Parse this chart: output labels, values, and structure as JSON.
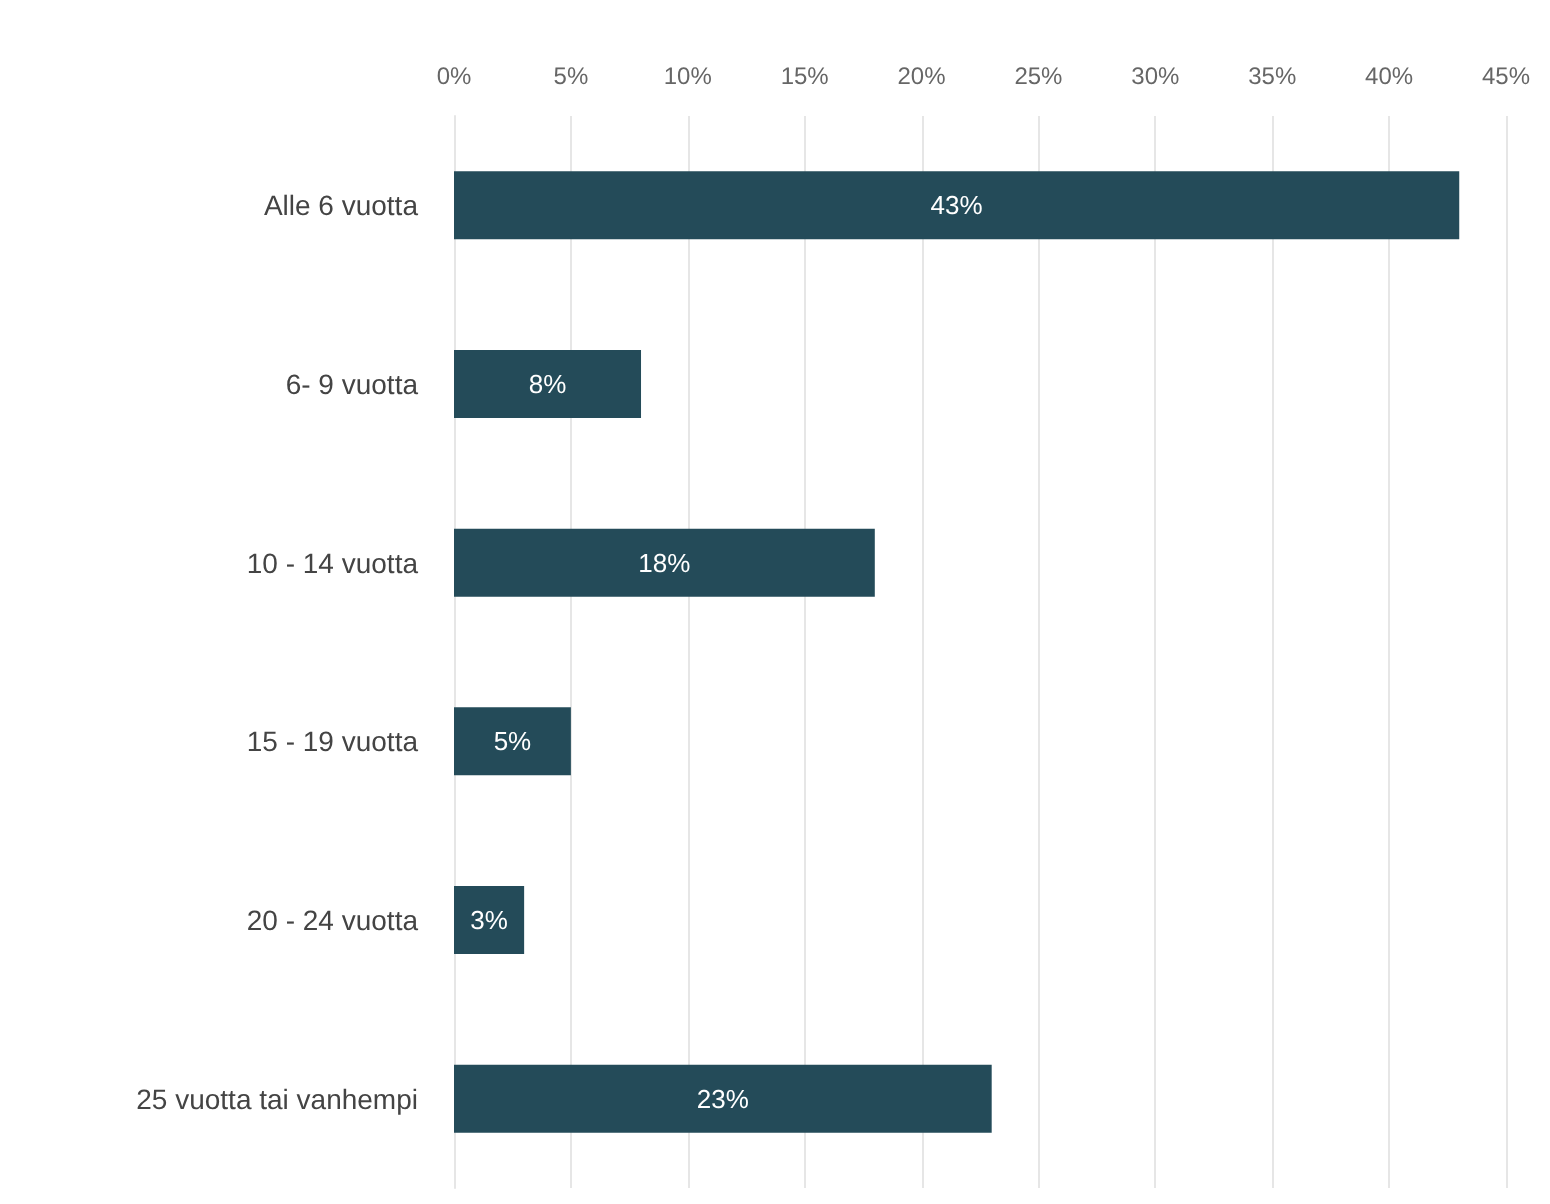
{
  "chart_data": {
    "type": "bar",
    "orientation": "horizontal",
    "categories": [
      "Alle 6 vuotta",
      "6- 9 vuotta",
      "10 - 14 vuotta",
      "15 - 19 vuotta",
      "20 - 24 vuotta",
      "25 vuotta tai vanhempi"
    ],
    "values": [
      43,
      8,
      18,
      5,
      3,
      23
    ],
    "value_labels": [
      "43%",
      "8%",
      "18%",
      "5%",
      "3%",
      "23%"
    ],
    "color": "#244b59",
    "xlim": [
      0,
      45
    ],
    "xticks": [
      {
        "value": 0,
        "label": "0%"
      },
      {
        "value": 5,
        "label": "5%"
      },
      {
        "value": 10,
        "label": "10%"
      },
      {
        "value": 15,
        "label": "15%"
      },
      {
        "value": 20,
        "label": "20%"
      },
      {
        "value": 25,
        "label": "25%"
      },
      {
        "value": 30,
        "label": "30%"
      },
      {
        "value": 35,
        "label": "35%"
      },
      {
        "value": 40,
        "label": "40%"
      },
      {
        "value": 45,
        "label": "45%"
      }
    ],
    "grid": "x"
  }
}
